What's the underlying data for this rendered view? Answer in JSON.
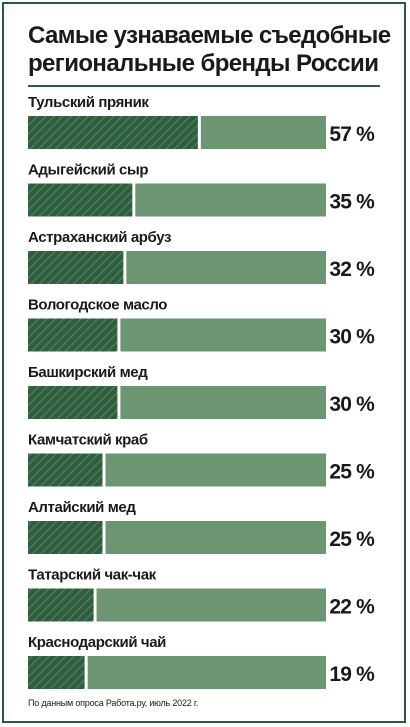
{
  "header": {
    "title": "Самые узнаваемые съедобные региональные бренды России"
  },
  "footnote": "По данным опроса Работа.ру, июль 2022 г.",
  "colors": {
    "dark_green": "#2f5e3e",
    "light_green": "#6c9672",
    "text": "#1a1a1a",
    "frame": "#2e5a3c"
  },
  "chart_data": {
    "type": "bar",
    "orientation": "horizontal",
    "title": "Самые узнаваемые съедобные региональные бренды России",
    "categories": [
      "Тульский пряник",
      "Адыгейский сыр",
      "Астраханский арбуз",
      "Вологодское масло",
      "Башкирский мед",
      "Камчатский краб",
      "Алтайский мед",
      "Татарский чак-чак",
      "Краснодарский чай"
    ],
    "values": [
      57,
      35,
      32,
      30,
      30,
      25,
      25,
      22,
      19
    ],
    "value_labels": [
      "57 %",
      "35 %",
      "32 %",
      "30 %",
      "30 %",
      "25 %",
      "25 %",
      "22 %",
      "19 %"
    ],
    "unit": "%",
    "xlim": [
      0,
      100
    ],
    "grid": false,
    "legend": "none"
  }
}
